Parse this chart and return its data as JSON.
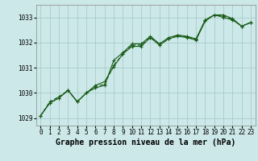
{
  "title": "Graphe pression niveau de la mer (hPa)",
  "x_labels": [
    "0",
    "1",
    "2",
    "3",
    "4",
    "5",
    "6",
    "7",
    "8",
    "9",
    "10",
    "11",
    "12",
    "13",
    "14",
    "15",
    "16",
    "17",
    "18",
    "19",
    "20",
    "21",
    "22",
    "23"
  ],
  "ylim": [
    1028.7,
    1033.5
  ],
  "yticks": [
    1029,
    1030,
    1031,
    1032,
    1033
  ],
  "bg_color": "#cce8e8",
  "grid_color": "#aacccc",
  "line_color": "#1a5c1a",
  "line1": [
    1029.1,
    1029.6,
    1029.8,
    1030.1,
    1029.65,
    1030.0,
    1030.3,
    1030.45,
    1031.05,
    1031.55,
    1031.85,
    1031.85,
    1032.2,
    1031.9,
    1032.15,
    1032.25,
    1032.2,
    1032.1,
    1032.85,
    1033.1,
    1033.1,
    1032.95,
    1032.65,
    1032.8
  ],
  "line2": [
    1029.1,
    1029.6,
    1029.8,
    1030.1,
    1029.65,
    1030.0,
    1030.2,
    1030.3,
    1031.3,
    1031.6,
    1031.95,
    1031.95,
    1032.25,
    1031.95,
    1032.2,
    1032.3,
    1032.25,
    1032.15,
    1032.9,
    1033.1,
    1033.0,
    1032.9,
    1032.65,
    1032.8
  ],
  "line3": [
    1029.1,
    1029.65,
    1029.85,
    1030.1,
    1029.65,
    1030.0,
    1030.25,
    1030.35,
    1031.1,
    1031.55,
    1031.9,
    1031.9,
    1032.2,
    1031.9,
    1032.15,
    1032.28,
    1032.22,
    1032.12,
    1032.88,
    1033.1,
    1033.05,
    1032.92,
    1032.65,
    1032.8
  ],
  "title_fontsize": 7,
  "tick_fontsize": 5.5
}
